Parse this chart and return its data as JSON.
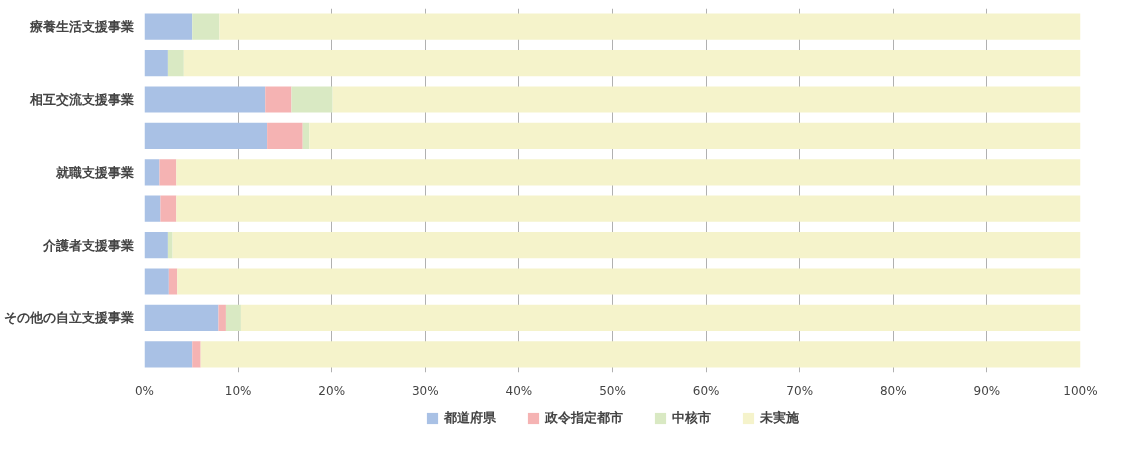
{
  "chart_data": {
    "type": "bar",
    "orientation": "horizontal",
    "stacked": true,
    "categories": [
      "療養生活支援事業",
      null,
      "相互交流支援事業",
      null,
      "就職支援事業",
      null,
      "介護者支援事業",
      null,
      "その他の自立支援事業",
      null
    ],
    "series": [
      {
        "name": "都道府県",
        "color": "#a9c1e5",
        "values": [
          5.1,
          2.5,
          12.9,
          13.1,
          1.6,
          1.7,
          2.5,
          2.6,
          7.9,
          5.1
        ]
      },
      {
        "name": "政令指定都市",
        "color": "#f5b3b3",
        "values": [
          0,
          0,
          2.8,
          3.8,
          1.8,
          1.7,
          0,
          0.9,
          0.8,
          0.9
        ]
      },
      {
        "name": "中核市",
        "color": "#d9e9c3",
        "values": [
          2.9,
          1.7,
          4.4,
          0.7,
          0,
          0,
          0.5,
          0,
          1.6,
          0
        ]
      },
      {
        "name": "未実施",
        "color": "#f5f3cb",
        "values": [
          92.0,
          95.8,
          79.9,
          82.4,
          96.6,
          96.6,
          97.0,
          96.5,
          89.7,
          94.0
        ]
      }
    ],
    "xlim": [
      0,
      100
    ],
    "xticks": [
      {
        "value": 0,
        "label": "0%"
      },
      {
        "value": 10,
        "label": "10%"
      },
      {
        "value": 20,
        "label": "20%"
      },
      {
        "value": 30,
        "label": "30%"
      },
      {
        "value": 40,
        "label": "40%"
      },
      {
        "value": 50,
        "label": "50%"
      },
      {
        "value": 60,
        "label": "60%"
      },
      {
        "value": 70,
        "label": "70%"
      },
      {
        "value": 80,
        "label": "80%"
      },
      {
        "value": 90,
        "label": "90%"
      },
      {
        "value": 100,
        "label": "100%"
      }
    ],
    "grid": "x",
    "legend": "bottom"
  }
}
